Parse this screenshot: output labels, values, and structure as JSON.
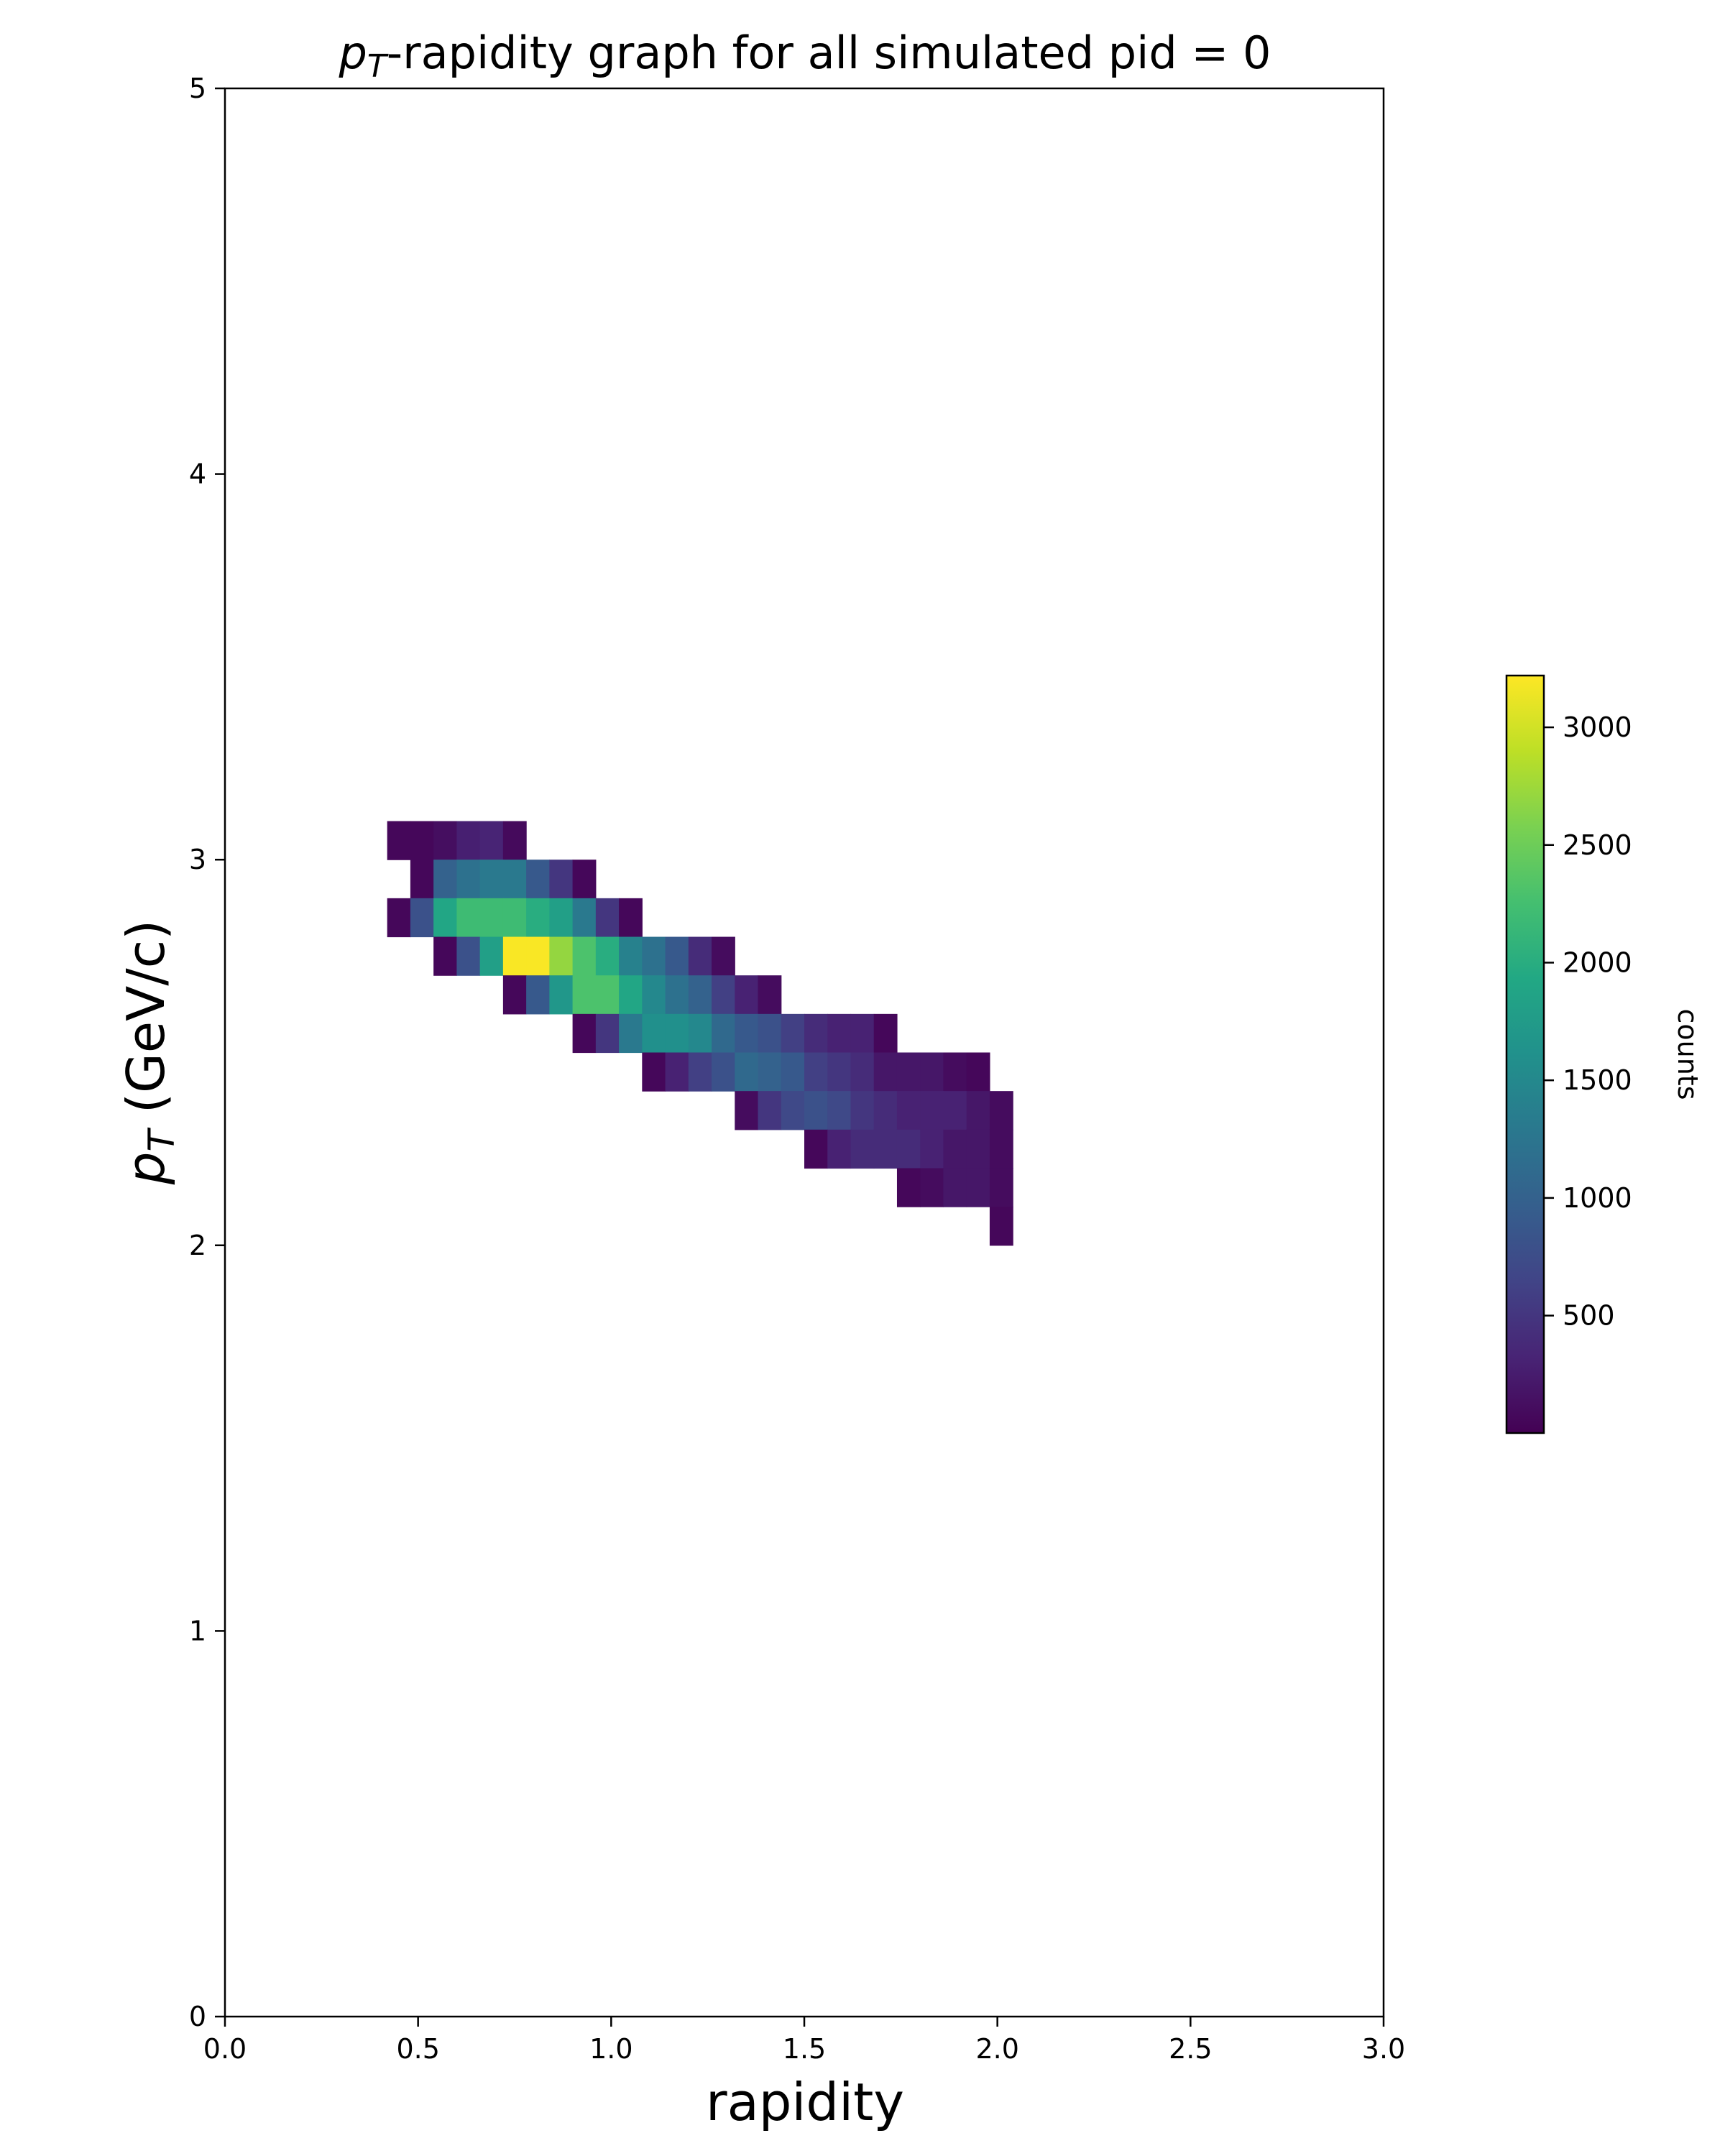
{
  "chart_data": {
    "type": "heatmap",
    "title": {
      "pre": "p",
      "sub": "T",
      "post": "-rapidity graph for all simulated pid = 0"
    },
    "xlabel": "rapidity",
    "ylabel": {
      "pre": "p",
      "sub": "T",
      "post": " (GeV/c)"
    },
    "xlim": [
      0,
      3
    ],
    "ylim": [
      0,
      5
    ],
    "xticks": [
      "0.0",
      "0.5",
      "1.0",
      "1.5",
      "2.0",
      "2.5",
      "3.0"
    ],
    "xtick_values": [
      0,
      0.5,
      1.0,
      1.5,
      2.0,
      2.5,
      3.0
    ],
    "yticks": [
      "0",
      "1",
      "2",
      "3",
      "4",
      "5"
    ],
    "ytick_values": [
      0,
      1,
      2,
      3,
      4,
      5
    ],
    "colormap": "viridis",
    "colorbar": {
      "label": "counts",
      "range": [
        1,
        3220
      ],
      "ticks": [
        "500",
        "1000",
        "1500",
        "2000",
        "2500",
        "3000"
      ],
      "tick_values": [
        500,
        1000,
        1500,
        2000,
        2500,
        3000
      ]
    },
    "bin_width_x": 0.06,
    "bin_width_y": 0.1,
    "x_edges_start": 0.42,
    "rows": [
      {
        "y": 3.0,
        "x_start": 0.42,
        "values": [
          60,
          60,
          120,
          280,
          320,
          80
        ]
      },
      {
        "y": 2.9,
        "x_start": 0.48,
        "values": [
          60,
          1000,
          1200,
          1300,
          1300,
          900,
          500,
          60
        ]
      },
      {
        "y": 2.8,
        "x_start": 0.42,
        "values": [
          60,
          800,
          1900,
          2200,
          2200,
          2200,
          2000,
          1800,
          1300,
          500,
          60
        ]
      },
      {
        "y": 2.7,
        "x_start": 0.54,
        "values": [
          60,
          800,
          1800,
          3200,
          3200,
          2700,
          2300,
          2000,
          1400,
          1200,
          900,
          400,
          100
        ]
      },
      {
        "y": 2.6,
        "x_start": 0.72,
        "values": [
          60,
          900,
          1700,
          2300,
          2300,
          1900,
          1500,
          1200,
          1000,
          600,
          300,
          100
        ]
      },
      {
        "y": 2.5,
        "x_start": 0.9,
        "values": [
          60,
          500,
          1300,
          1600,
          1600,
          1500,
          1100,
          900,
          800,
          600,
          400,
          300,
          300,
          60
        ]
      },
      {
        "y": 2.4,
        "x_start": 1.08,
        "values": [
          60,
          300,
          600,
          800,
          1100,
          1000,
          900,
          600,
          500,
          400,
          200,
          200,
          200,
          100,
          60
        ]
      },
      {
        "y": 2.3,
        "x_start": 1.32,
        "values": [
          100,
          500,
          700,
          800,
          700,
          500,
          400,
          300,
          300,
          300,
          200,
          100
        ]
      },
      {
        "y": 2.2,
        "x_start": 1.5,
        "values": [
          60,
          300,
          400,
          400,
          400,
          300,
          200,
          200,
          100
        ]
      },
      {
        "y": 2.1,
        "x_start": 1.74,
        "values": [
          60,
          100,
          200,
          200,
          100
        ]
      },
      {
        "y": 2.0,
        "x_start": 1.98,
        "values": [
          60
        ]
      }
    ]
  }
}
